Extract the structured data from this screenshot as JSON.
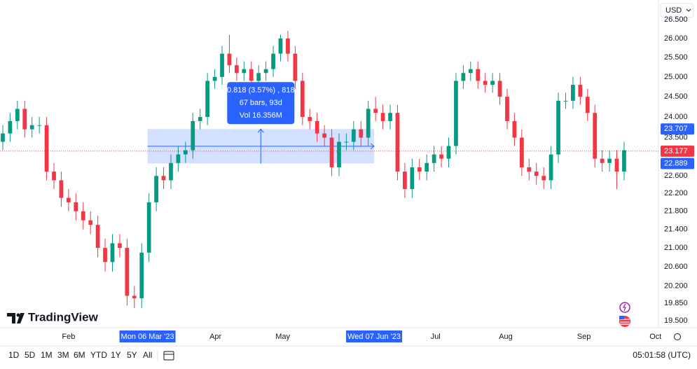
{
  "chart_data": {
    "type": "candlestick",
    "log_scale": true,
    "grid": false,
    "currency": "USD",
    "logo": "TradingView",
    "up_color": "#089981",
    "down_color": "#f23645",
    "open": [
      23.4,
      23.6,
      23.9,
      24.2,
      23.7,
      23.8,
      23.8,
      22.7,
      22.5,
      22.1,
      22.0,
      21.8,
      21.6,
      21.5,
      21.0,
      20.7,
      21.1,
      21.0,
      20.0,
      19.95,
      20.9,
      22.0,
      22.6,
      22.5,
      22.9,
      23.1,
      23.2,
      23.9,
      24.0,
      24.9,
      25.0,
      25.6,
      25.3,
      25.1,
      25.2,
      24.9,
      25.1,
      25.2,
      25.6,
      26.0,
      25.6,
      24.9,
      24.0,
      23.9,
      23.6,
      23.5,
      22.8,
      23.4,
      23.4,
      23.7,
      23.5,
      24.2,
      24.1,
      23.9,
      24.1,
      22.7,
      22.3,
      22.8,
      22.7,
      22.9,
      23.1,
      23.0,
      23.3,
      24.9,
      25.1,
      25.2,
      24.9,
      24.8,
      24.9,
      24.5,
      23.9,
      23.5,
      22.8,
      22.7,
      22.6,
      22.5,
      23.1,
      24.4,
      24.4,
      24.8,
      24.5,
      24.1,
      23.0,
      22.9,
      23.0,
      22.7
    ],
    "high": [
      23.8,
      24.1,
      24.4,
      24.4,
      24.0,
      24.0,
      24.0,
      22.9,
      22.7,
      22.3,
      22.2,
      22.0,
      21.8,
      21.7,
      21.2,
      21.3,
      21.3,
      21.2,
      20.2,
      21.1,
      22.2,
      22.8,
      22.8,
      23.1,
      23.3,
      23.4,
      24.1,
      24.2,
      25.1,
      25.2,
      25.8,
      26.1,
      25.5,
      25.4,
      25.4,
      25.3,
      25.4,
      25.8,
      26.1,
      26.2,
      25.8,
      25.1,
      24.2,
      24.1,
      23.8,
      23.7,
      23.6,
      23.6,
      23.9,
      23.9,
      24.4,
      24.5,
      24.3,
      24.3,
      24.3,
      22.9,
      23.0,
      23.0,
      23.1,
      23.3,
      23.3,
      23.5,
      25.1,
      25.3,
      25.4,
      25.4,
      25.1,
      25.1,
      25.1,
      24.7,
      24.1,
      23.7,
      23.0,
      22.9,
      22.8,
      23.3,
      24.6,
      24.6,
      25.0,
      25.0,
      24.7,
      24.3,
      23.2,
      23.2,
      23.2,
      23.4
    ],
    "low": [
      23.2,
      23.4,
      23.7,
      23.5,
      23.5,
      23.6,
      22.5,
      22.3,
      21.9,
      21.8,
      21.6,
      21.4,
      21.3,
      20.8,
      20.5,
      20.5,
      20.8,
      19.8,
      19.75,
      19.75,
      20.7,
      21.8,
      22.3,
      22.3,
      22.7,
      22.9,
      23.0,
      23.7,
      23.8,
      24.7,
      24.8,
      25.1,
      24.9,
      24.9,
      24.7,
      24.7,
      24.9,
      25.0,
      25.4,
      25.4,
      24.7,
      23.8,
      23.7,
      23.4,
      23.3,
      22.6,
      22.6,
      23.2,
      23.2,
      23.3,
      23.3,
      23.9,
      23.7,
      23.7,
      22.5,
      22.1,
      22.1,
      22.5,
      22.5,
      22.7,
      22.8,
      22.8,
      23.1,
      24.7,
      24.9,
      24.7,
      24.6,
      24.6,
      24.3,
      23.7,
      23.3,
      22.6,
      22.5,
      22.4,
      22.3,
      22.3,
      22.9,
      24.2,
      24.2,
      24.3,
      23.9,
      22.8,
      22.7,
      22.7,
      22.3,
      22.5
    ],
    "close": [
      23.6,
      23.9,
      24.2,
      23.7,
      23.8,
      23.8,
      22.7,
      22.5,
      22.1,
      22.0,
      21.8,
      21.6,
      21.5,
      21.0,
      20.7,
      21.1,
      21.0,
      20.0,
      19.95,
      20.9,
      22.0,
      22.6,
      22.5,
      22.9,
      23.1,
      23.2,
      23.9,
      24.0,
      24.9,
      25.0,
      25.6,
      25.3,
      25.1,
      25.2,
      24.9,
      25.1,
      25.2,
      25.6,
      26.0,
      25.6,
      24.9,
      24.0,
      23.9,
      23.6,
      23.5,
      22.8,
      23.4,
      23.4,
      23.7,
      23.5,
      24.2,
      24.1,
      23.9,
      24.1,
      22.7,
      22.3,
      22.8,
      22.7,
      22.9,
      23.1,
      23.0,
      23.3,
      24.9,
      25.1,
      25.2,
      24.9,
      24.8,
      24.9,
      24.5,
      23.9,
      23.5,
      22.8,
      22.7,
      22.6,
      22.5,
      23.1,
      24.4,
      24.4,
      24.8,
      24.5,
      24.1,
      23.0,
      22.9,
      23.0,
      22.7,
      23.2
    ],
    "xlim": [
      -0.38,
      89.7
    ],
    "xticks": [
      {
        "value": 9.0,
        "label": "Feb"
      },
      {
        "value": 29.1,
        "label": "Apr"
      },
      {
        "value": 38.3,
        "label": "May"
      },
      {
        "value": 59.2,
        "label": "Jul"
      },
      {
        "value": 68.8,
        "label": "Aug"
      },
      {
        "value": 79.5,
        "label": "Sep"
      },
      {
        "value": 89.3,
        "label": "Oct"
      }
    ],
    "ylim": [
      19.36,
      27.04
    ],
    "yticks": [
      {
        "value": 19.5,
        "label": "19.500"
      },
      {
        "value": 19.85,
        "label": "19.850"
      },
      {
        "value": 20.2,
        "label": "20.200"
      },
      {
        "value": 20.6,
        "label": "20.600"
      },
      {
        "value": 21,
        "label": "21.000"
      },
      {
        "value": 21.4,
        "label": "21.400"
      },
      {
        "value": 21.8,
        "label": "21.800"
      },
      {
        "value": 22.2,
        "label": "22.200"
      },
      {
        "value": 22.6,
        "label": "22.600"
      },
      {
        "value": 23.5,
        "label": "23.500"
      },
      {
        "value": 24,
        "label": "24.000"
      },
      {
        "value": 24.5,
        "label": "24.500"
      },
      {
        "value": 25,
        "label": "25.000"
      },
      {
        "value": 25.5,
        "label": "25.500"
      },
      {
        "value": 26,
        "label": "26.000"
      },
      {
        "value": 26.5,
        "label": "26.500"
      }
    ],
    "last_price": {
      "value": 23.177,
      "label": "23.177",
      "color": "#f23645"
    },
    "measure": {
      "start": 19.8,
      "end": 50.8,
      "start_label": "Mon 06 Mar '23",
      "end_label": "Wed 07 Jun '23",
      "high": {
        "value": 23.707,
        "label": "23.707"
      },
      "low": {
        "value": 22.889,
        "label": "22.889"
      },
      "color": "#2962ff",
      "lines": [
        "0.818 (3.57%) , 818",
        "67 bars, 93d",
        "Vol 16.356M"
      ]
    },
    "toolbar": {
      "ranges": [
        "1D",
        "5D",
        "1M",
        "3M",
        "6M",
        "YTD",
        "1Y",
        "5Y",
        "All"
      ],
      "time": "05:01:58 (UTC)"
    }
  }
}
